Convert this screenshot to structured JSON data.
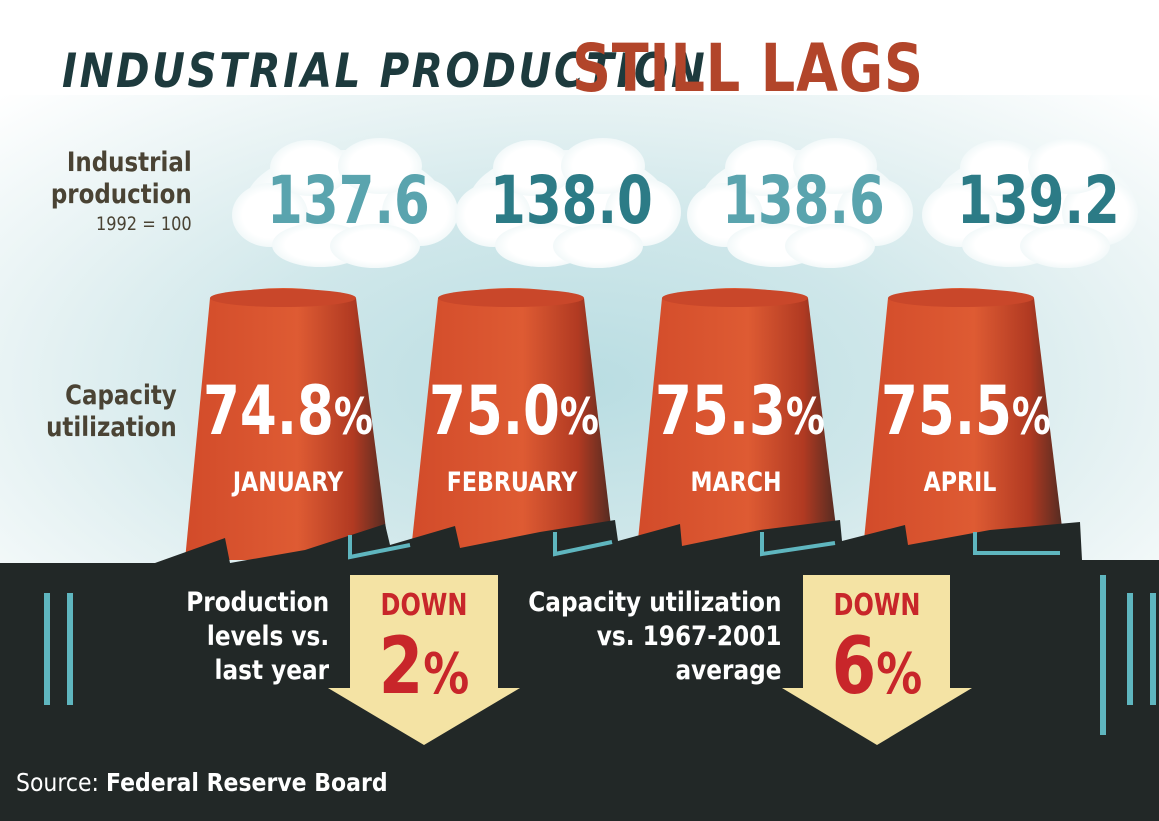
{
  "title": {
    "part1": "INDUSTRIAL PRODUCTION",
    "part2": "STILL LAGS"
  },
  "labels": {
    "production_line1": "Industrial",
    "production_line2": "production",
    "production_base": "1992 = 100",
    "capacity_line1": "Capacity",
    "capacity_line2": "utilization"
  },
  "months": [
    {
      "name": "JANUARY",
      "production": "137.6",
      "capacity": "74.8",
      "unit": "%"
    },
    {
      "name": "FEBRUARY",
      "production": "138.0",
      "capacity": "75.0",
      "unit": "%"
    },
    {
      "name": "MARCH",
      "production": "138.6",
      "capacity": "75.3",
      "unit": "%"
    },
    {
      "name": "APRIL",
      "production": "139.2",
      "capacity": "75.5",
      "unit": "%"
    }
  ],
  "notes": [
    {
      "line1": "Production",
      "line2": "levels vs.",
      "line3": "last year",
      "direction": "DOWN",
      "value": "2",
      "unit": "%"
    },
    {
      "line1": "Capacity utilization",
      "line2": "vs. 1967-2001",
      "line3": "average",
      "direction": "DOWN",
      "value": "6",
      "unit": "%"
    }
  ],
  "source": {
    "prefix": "Source:",
    "name": "Federal Reserve Board"
  },
  "colors": {
    "title_dark": "#1d3a3d",
    "title_accent": "#b2452a",
    "stack_red": "#d4502e",
    "factory": "#222827",
    "teal": "#5fb6bf",
    "arrow": "#f4e3a4",
    "down_red": "#c8262a"
  }
}
